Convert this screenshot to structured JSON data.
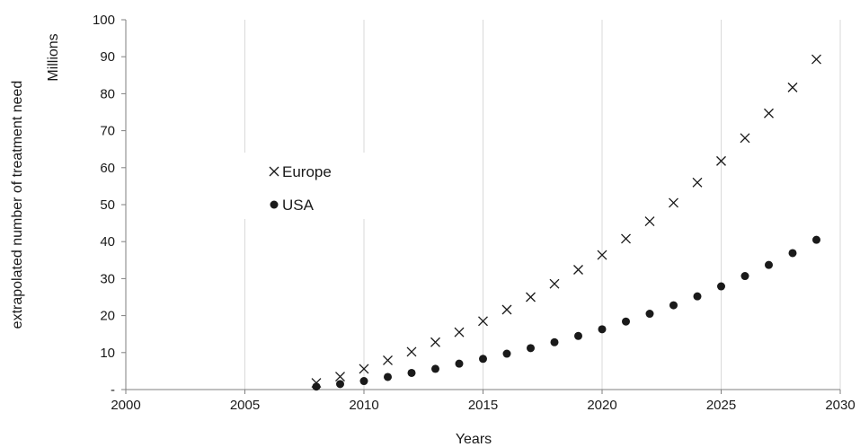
{
  "chart_data": {
    "type": "scatter",
    "title": "",
    "xlabel": "Years",
    "ylabel": "extrapolated number of treatment need",
    "ylabel_units": "Millions",
    "xlim": [
      2000,
      2030
    ],
    "ylim": [
      0,
      100
    ],
    "x_ticks": [
      "2000",
      "2005",
      "2010",
      "2015",
      "2020",
      "2025",
      "2030"
    ],
    "x_tick_values": [
      2000,
      2005,
      2010,
      2015,
      2020,
      2025,
      2030
    ],
    "y_ticks": [
      "-",
      "10",
      "20",
      "30",
      "40",
      "50",
      "60",
      "70",
      "80",
      "90",
      "100"
    ],
    "y_tick_values": [
      0,
      10,
      20,
      30,
      40,
      50,
      60,
      70,
      80,
      90,
      100
    ],
    "grid": true,
    "legend_position": "middle-left",
    "x": [
      2008,
      2009,
      2010,
      2011,
      2012,
      2013,
      2014,
      2015,
      2016,
      2017,
      2018,
      2019,
      2020,
      2021,
      2022,
      2023,
      2024,
      2025,
      2026,
      2027,
      2028,
      2029
    ],
    "series": [
      {
        "name": "Europe",
        "marker": "x",
        "values": [
          1.8,
          3.5,
          5.6,
          7.9,
          10.2,
          12.8,
          15.5,
          18.5,
          21.6,
          25.0,
          28.6,
          32.4,
          36.4,
          40.8,
          45.5,
          50.5,
          56.0,
          61.8,
          68.0,
          74.7,
          81.7,
          89.3
        ]
      },
      {
        "name": "USA",
        "marker": "dot",
        "values": [
          0.8,
          1.5,
          2.3,
          3.4,
          4.5,
          5.6,
          7.0,
          8.3,
          9.7,
          11.2,
          12.8,
          14.5,
          16.3,
          18.4,
          20.5,
          22.8,
          25.2,
          27.9,
          30.7,
          33.7,
          36.9,
          40.5
        ]
      }
    ],
    "colors": {
      "marker": "#1a1a1a",
      "grid": "#d9d9d9",
      "axis": "#7f7f7f"
    }
  }
}
